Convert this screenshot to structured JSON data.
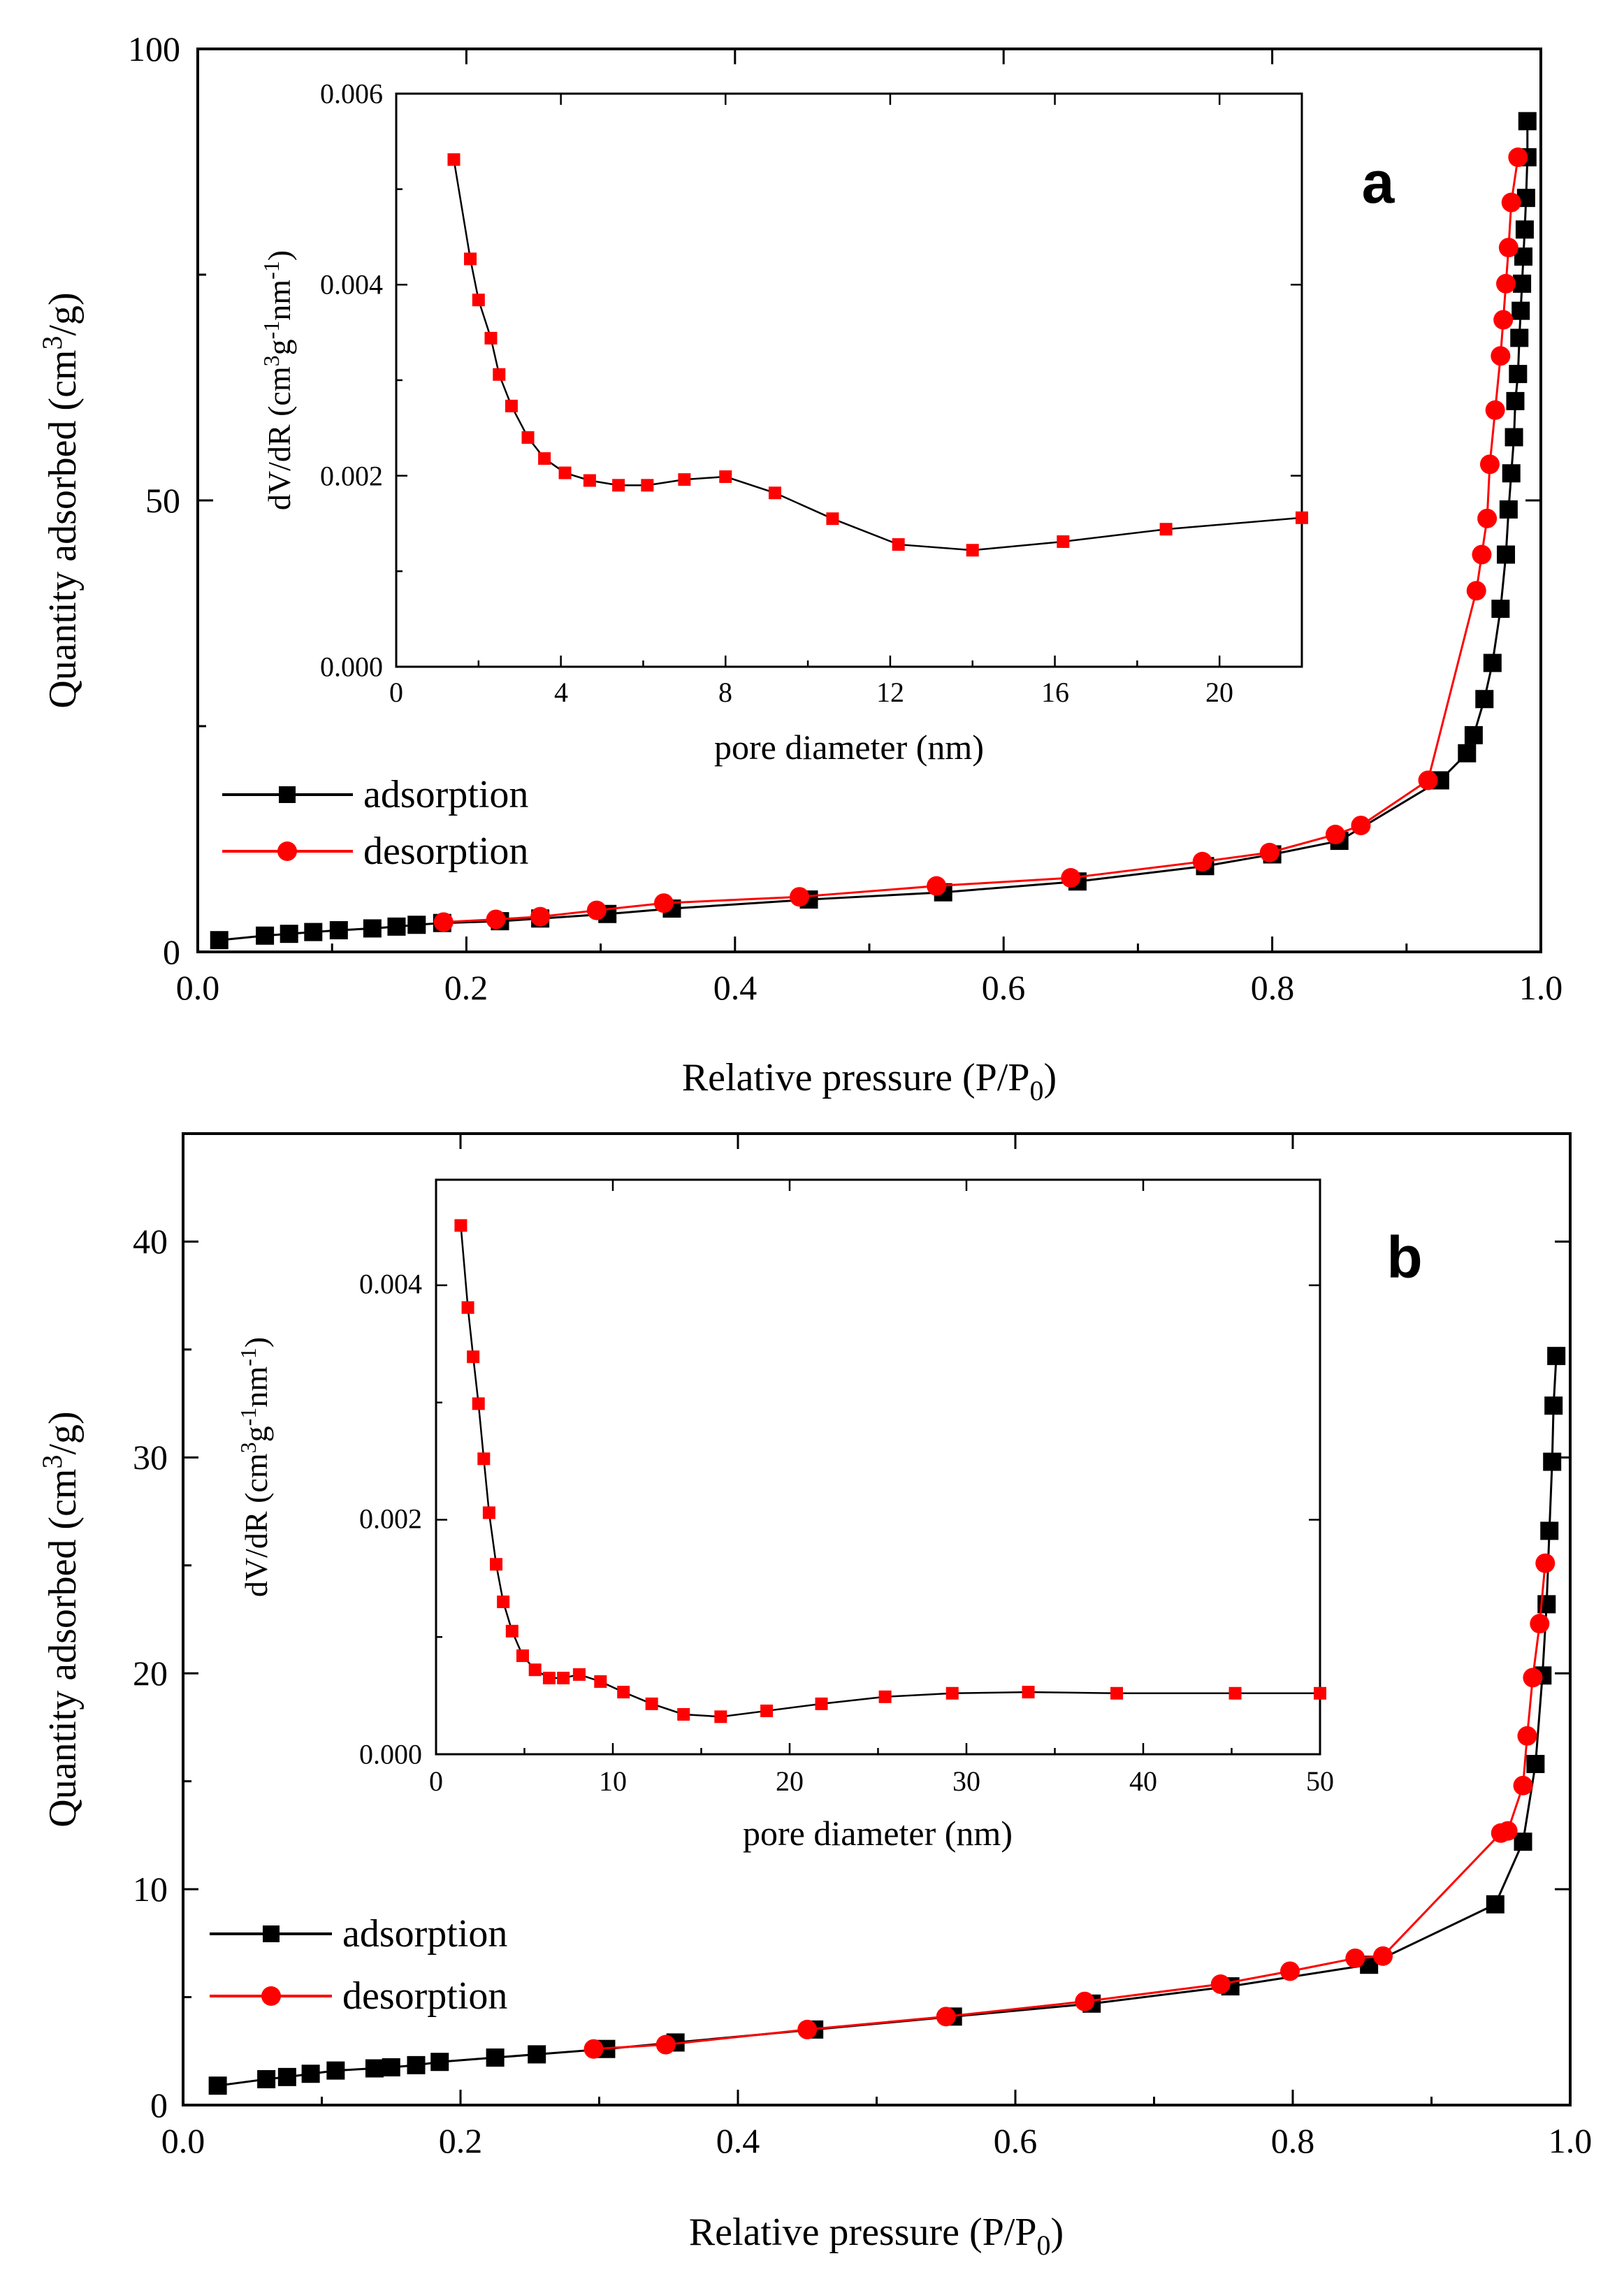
{
  "chart_data": [
    {
      "panel": "a",
      "type": "line",
      "xlabel": "Relative pressure (P/P0)",
      "ylabel": "Quantity adsorbed (cm3/g)",
      "xlim": [
        0,
        1.0
      ],
      "ylim": [
        0,
        100
      ],
      "xticks": [
        "0.0",
        "0.2",
        "0.4",
        "0.6",
        "0.8",
        "1.0"
      ],
      "yticks": [
        "0",
        "50",
        "100"
      ],
      "legend": [
        "adsorption",
        "desorption"
      ],
      "legend_position": "bottom-left",
      "series": [
        {
          "name": "adsorption",
          "color": "#000000",
          "marker": "square",
          "x": [
            0.016,
            0.05,
            0.068,
            0.086,
            0.105,
            0.13,
            0.148,
            0.163,
            0.182,
            0.225,
            0.255,
            0.305,
            0.353,
            0.455,
            0.555,
            0.655,
            0.75,
            0.8,
            0.85,
            0.925,
            0.945,
            0.95,
            0.958,
            0.964,
            0.97,
            0.974,
            0.976,
            0.978,
            0.98,
            0.981,
            0.983,
            0.984,
            0.985,
            0.986,
            0.987,
            0.988,
            0.989,
            0.99,
            0.99
          ],
          "y": [
            1.3,
            1.8,
            2.0,
            2.2,
            2.4,
            2.6,
            2.8,
            3.0,
            3.2,
            3.4,
            3.7,
            4.2,
            4.8,
            5.8,
            6.6,
            7.8,
            9.5,
            10.8,
            12.3,
            19.0,
            22.0,
            24.0,
            28.0,
            32.0,
            38.0,
            44.0,
            49.0,
            53.0,
            57.0,
            61.0,
            64.0,
            68.0,
            71.0,
            74.0,
            77.0,
            80.0,
            83.5,
            88.0,
            92.0
          ]
        },
        {
          "name": "desorption",
          "color": "#ff0000",
          "marker": "circle",
          "x": [
            0.983,
            0.978,
            0.976,
            0.974,
            0.972,
            0.97,
            0.966,
            0.962,
            0.96,
            0.956,
            0.952,
            0.916,
            0.866,
            0.847,
            0.798,
            0.748,
            0.65,
            0.55,
            0.448,
            0.347,
            0.297,
            0.255,
            0.222,
            0.183
          ],
          "y": [
            88.0,
            83.0,
            78.0,
            74.0,
            70.0,
            66.0,
            60.0,
            54.0,
            48.0,
            44.0,
            40.0,
            19.0,
            14.0,
            13.0,
            11.0,
            10.0,
            8.2,
            7.3,
            6.1,
            5.4,
            4.6,
            3.9,
            3.6,
            3.3
          ]
        }
      ],
      "inset": {
        "type": "line",
        "xlabel": "pore diameter (nm)",
        "ylabel": "dV/dR (cm3g-1nm-1)",
        "xlim": [
          0,
          22
        ],
        "ylim": [
          0,
          0.006
        ],
        "xticks": [
          "0",
          "4",
          "8",
          "12",
          "16",
          "20"
        ],
        "yticks": [
          "0.000",
          "0.002",
          "0.004",
          "0.006"
        ],
        "series": [
          {
            "name": "pore size distribution",
            "color": "#ff0000",
            "line_color": "#000000",
            "marker": "square",
            "x": [
              1.4,
              1.8,
              2.0,
              2.3,
              2.5,
              2.8,
              3.2,
              3.6,
              4.1,
              4.7,
              5.4,
              6.1,
              7.0,
              8.0,
              9.2,
              10.6,
              12.2,
              14.0,
              16.2,
              18.7,
              22.0
            ],
            "y": [
              0.00531,
              0.00427,
              0.00384,
              0.00344,
              0.00306,
              0.00273,
              0.0024,
              0.00218,
              0.00203,
              0.00195,
              0.0019,
              0.0019,
              0.00196,
              0.00199,
              0.00182,
              0.00155,
              0.00128,
              0.00122,
              0.00131,
              0.00144,
              0.00156
            ]
          }
        ]
      },
      "panel_label": "a"
    },
    {
      "panel": "b",
      "type": "line",
      "xlabel": "Relative pressure (P/P0)",
      "ylabel": "Quantity adsorbed (cm3/g)",
      "xlim": [
        0,
        1.0
      ],
      "ylim": [
        0,
        45
      ],
      "xticks": [
        "0.0",
        "0.2",
        "0.4",
        "0.6",
        "0.8",
        "1.0"
      ],
      "yticks": [
        "0",
        "10",
        "20",
        "30",
        "40"
      ],
      "legend": [
        "adsorption",
        "desorption"
      ],
      "legend_position": "bottom-left",
      "series": [
        {
          "name": "adsorption",
          "color": "#000000",
          "marker": "square",
          "x": [
            0.025,
            0.06,
            0.075,
            0.092,
            0.11,
            0.138,
            0.15,
            0.168,
            0.185,
            0.225,
            0.255,
            0.305,
            0.355,
            0.455,
            0.555,
            0.655,
            0.755,
            0.855,
            0.946,
            0.966,
            0.975,
            0.98,
            0.983,
            0.985,
            0.987,
            0.988,
            0.99
          ],
          "y": [
            0.9,
            1.2,
            1.3,
            1.45,
            1.6,
            1.7,
            1.75,
            1.85,
            2.0,
            2.2,
            2.35,
            2.6,
            2.9,
            3.5,
            4.1,
            4.7,
            5.5,
            6.5,
            9.3,
            12.2,
            15.8,
            19.9,
            23.2,
            26.6,
            29.8,
            32.4,
            34.7
          ]
        },
        {
          "name": "desorption",
          "color": "#ff0000",
          "marker": "circle",
          "x": [
            0.982,
            0.978,
            0.973,
            0.969,
            0.966,
            0.955,
            0.95,
            0.865,
            0.845,
            0.798,
            0.748,
            0.65,
            0.55,
            0.45,
            0.348,
            0.296
          ],
          "y": [
            25.1,
            22.3,
            19.8,
            17.1,
            14.8,
            12.7,
            12.6,
            6.9,
            6.8,
            6.2,
            5.6,
            4.8,
            4.1,
            3.5,
            2.8,
            2.6
          ]
        }
      ],
      "inset": {
        "type": "line",
        "xlabel": "pore diameter (nm)",
        "ylabel": "dV/dR (cm3g-1nm-1)",
        "xlim": [
          0,
          50
        ],
        "ylim": [
          0,
          0.0049
        ],
        "xticks": [
          "0",
          "10",
          "20",
          "30",
          "40",
          "50"
        ],
        "yticks": [
          "0.000",
          "0.002",
          "0.004"
        ],
        "series": [
          {
            "name": "pore size distribution",
            "color": "#ff0000",
            "line_color": "#000000",
            "marker": "square",
            "x": [
              1.4,
              1.8,
              2.1,
              2.4,
              2.7,
              3.0,
              3.4,
              3.8,
              4.3,
              4.9,
              5.6,
              6.4,
              7.2,
              8.1,
              9.3,
              10.6,
              12.2,
              14.0,
              16.1,
              18.7,
              21.8,
              25.4,
              29.2,
              33.5,
              38.5,
              45.2,
              50.0
            ],
            "y": [
              0.00451,
              0.00381,
              0.00339,
              0.00299,
              0.00252,
              0.00206,
              0.00162,
              0.0013,
              0.00105,
              0.00084,
              0.00072,
              0.00065,
              0.00065,
              0.00068,
              0.00062,
              0.00053,
              0.00043,
              0.00034,
              0.00032,
              0.00037,
              0.00043,
              0.00049,
              0.00052,
              0.00053,
              0.00052,
              0.00052,
              0.00052
            ]
          }
        ]
      },
      "panel_label": "b"
    }
  ]
}
